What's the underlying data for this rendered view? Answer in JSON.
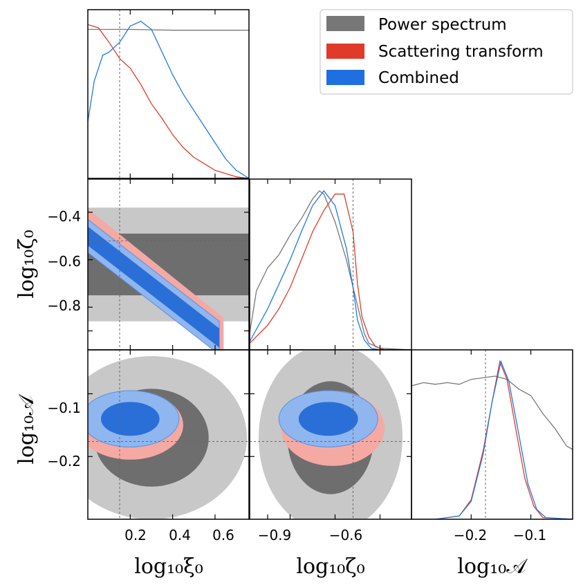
{
  "chart_data": {
    "type": "corner",
    "parameters": [
      {
        "key": "xi0",
        "label": "log₁₀ξ₀",
        "range": [
          0.0,
          0.76
        ],
        "ticks": [
          0.2,
          0.4,
          0.6
        ],
        "tick_labels": [
          "0.2",
          "0.4",
          "0.6"
        ],
        "truth": 0.15
      },
      {
        "key": "zeta0",
        "label": "log₁₀ζ₀",
        "range": [
          -0.98,
          -0.26
        ],
        "ticks": [
          -0.9,
          -0.8,
          -0.6,
          -0.4
        ],
        "tick_labels": [
          "−0.9",
          "−0.8",
          "−0.6",
          "−0.4"
        ],
        "truth": -0.52
      },
      {
        "key": "A",
        "label": "log₁₀𝒜",
        "range": [
          -0.3,
          -0.03
        ],
        "ticks": [
          -0.2,
          -0.1
        ],
        "tick_labels": [
          "−0.2",
          "−0.1"
        ],
        "truth": -0.176
      }
    ],
    "axis_tick_labels": {
      "xi0_x": [
        "0.2",
        "0.4",
        "0.6"
      ],
      "zeta0_x": [
        "−0.9",
        "−0.6"
      ],
      "A_x": [
        "−0.2",
        "−0.1"
      ],
      "zeta0_y": [
        "−0.4",
        "−0.6",
        "−0.8"
      ],
      "A_y": [
        "−0.1",
        "−0.2"
      ]
    },
    "series": [
      {
        "name": "Power spectrum",
        "color": "#777777"
      },
      {
        "name": "Scattering transform",
        "color": "#e03a2a"
      },
      {
        "name": "Combined",
        "color": "#1f6fe0"
      }
    ],
    "marginals": {
      "xi0": {
        "Power spectrum": [
          [
            0.0,
            0.92
          ],
          [
            0.2,
            0.92
          ],
          [
            0.4,
            0.915
          ],
          [
            0.6,
            0.915
          ],
          [
            0.76,
            0.915
          ]
        ],
        "Scattering transform": [
          [
            0.0,
            0.95
          ],
          [
            0.05,
            0.93
          ],
          [
            0.1,
            0.84
          ],
          [
            0.15,
            0.74
          ],
          [
            0.2,
            0.68
          ],
          [
            0.25,
            0.58
          ],
          [
            0.3,
            0.46
          ],
          [
            0.35,
            0.37
          ],
          [
            0.4,
            0.27
          ],
          [
            0.45,
            0.19
          ],
          [
            0.5,
            0.13
          ],
          [
            0.55,
            0.09
          ],
          [
            0.6,
            0.05
          ],
          [
            0.65,
            0.03
          ],
          [
            0.7,
            0.01
          ],
          [
            0.76,
            0.0
          ]
        ],
        "Combined": [
          [
            0.0,
            0.35
          ],
          [
            0.03,
            0.6
          ],
          [
            0.07,
            0.76
          ],
          [
            0.1,
            0.78
          ],
          [
            0.15,
            0.84
          ],
          [
            0.2,
            0.94
          ],
          [
            0.25,
            0.97
          ],
          [
            0.3,
            0.92
          ],
          [
            0.35,
            0.78
          ],
          [
            0.4,
            0.64
          ],
          [
            0.45,
            0.52
          ],
          [
            0.5,
            0.42
          ],
          [
            0.55,
            0.32
          ],
          [
            0.6,
            0.22
          ],
          [
            0.65,
            0.12
          ],
          [
            0.7,
            0.05
          ],
          [
            0.76,
            0.0
          ]
        ]
      },
      "zeta0": {
        "Power spectrum": [
          [
            -0.98,
            0.1
          ],
          [
            -0.95,
            0.36
          ],
          [
            -0.9,
            0.5
          ],
          [
            -0.85,
            0.58
          ],
          [
            -0.8,
            0.7
          ],
          [
            -0.75,
            0.8
          ],
          [
            -0.7,
            0.92
          ],
          [
            -0.67,
            0.97
          ],
          [
            -0.65,
            0.95
          ],
          [
            -0.6,
            0.78
          ],
          [
            -0.55,
            0.55
          ],
          [
            -0.5,
            0.27
          ],
          [
            -0.47,
            0.1
          ],
          [
            -0.45,
            0.04
          ],
          [
            -0.4,
            0.01
          ],
          [
            -0.26,
            0.0
          ]
        ],
        "Scattering transform": [
          [
            -0.98,
            0.04
          ],
          [
            -0.9,
            0.15
          ],
          [
            -0.85,
            0.25
          ],
          [
            -0.8,
            0.38
          ],
          [
            -0.75,
            0.55
          ],
          [
            -0.7,
            0.72
          ],
          [
            -0.65,
            0.85
          ],
          [
            -0.6,
            0.95
          ],
          [
            -0.56,
            0.95
          ],
          [
            -0.52,
            0.72
          ],
          [
            -0.5,
            0.4
          ],
          [
            -0.48,
            0.2
          ],
          [
            -0.45,
            0.08
          ],
          [
            -0.42,
            0.02
          ],
          [
            -0.38,
            0.0
          ],
          [
            -0.26,
            0.0
          ]
        ],
        "Combined": [
          [
            -0.98,
            0.05
          ],
          [
            -0.9,
            0.25
          ],
          [
            -0.85,
            0.4
          ],
          [
            -0.8,
            0.55
          ],
          [
            -0.75,
            0.72
          ],
          [
            -0.7,
            0.88
          ],
          [
            -0.65,
            0.97
          ],
          [
            -0.6,
            0.88
          ],
          [
            -0.55,
            0.62
          ],
          [
            -0.52,
            0.38
          ],
          [
            -0.5,
            0.18
          ],
          [
            -0.47,
            0.06
          ],
          [
            -0.44,
            0.01
          ],
          [
            -0.4,
            0.0
          ],
          [
            -0.26,
            0.0
          ]
        ]
      },
      "A": {
        "Power spectrum": [
          [
            -0.3,
            0.82
          ],
          [
            -0.28,
            0.84
          ],
          [
            -0.26,
            0.83
          ],
          [
            -0.24,
            0.84
          ],
          [
            -0.22,
            0.83
          ],
          [
            -0.2,
            0.86
          ],
          [
            -0.18,
            0.87
          ],
          [
            -0.16,
            0.88
          ],
          [
            -0.14,
            0.86
          ],
          [
            -0.12,
            0.8
          ],
          [
            -0.1,
            0.76
          ],
          [
            -0.08,
            0.65
          ],
          [
            -0.06,
            0.56
          ],
          [
            -0.04,
            0.45
          ],
          [
            -0.03,
            0.43
          ]
        ],
        "Scattering transform": [
          [
            -0.3,
            0.0
          ],
          [
            -0.26,
            0.0
          ],
          [
            -0.22,
            0.02
          ],
          [
            -0.2,
            0.12
          ],
          [
            -0.18,
            0.42
          ],
          [
            -0.165,
            0.72
          ],
          [
            -0.152,
            0.97
          ],
          [
            -0.14,
            0.86
          ],
          [
            -0.125,
            0.55
          ],
          [
            -0.11,
            0.25
          ],
          [
            -0.095,
            0.08
          ],
          [
            -0.08,
            0.01
          ],
          [
            -0.03,
            0.0
          ]
        ],
        "Combined": [
          [
            -0.3,
            0.0
          ],
          [
            -0.26,
            0.0
          ],
          [
            -0.22,
            0.02
          ],
          [
            -0.2,
            0.11
          ],
          [
            -0.18,
            0.4
          ],
          [
            -0.165,
            0.72
          ],
          [
            -0.15,
            0.97
          ],
          [
            -0.137,
            0.85
          ],
          [
            -0.12,
            0.52
          ],
          [
            -0.105,
            0.22
          ],
          [
            -0.09,
            0.06
          ],
          [
            -0.075,
            0.01
          ],
          [
            -0.03,
            0.0
          ]
        ]
      }
    },
    "joint": {
      "zeta0_vs_xi0": {
        "Power spectrum": {
          "type": "band",
          "center": [
            [
              0.0,
              -0.62
            ],
            [
              0.76,
              -0.62
            ]
          ],
          "outer_halfwidth": 0.24,
          "inner_halfwidth": 0.13
        },
        "Scattering transform": {
          "type": "band",
          "center": [
            [
              0.0,
              -0.47
            ],
            [
              0.64,
              -0.93
            ]
          ],
          "outer_halfwidth": 0.085,
          "inner_halfwidth": 0.05
        },
        "Combined": {
          "type": "band",
          "center": [
            [
              0.0,
              -0.5
            ],
            [
              0.62,
              -0.93
            ]
          ],
          "outer_halfwidth": 0.07,
          "inner_halfwidth": 0.04
        }
      },
      "A_vs_xi0": {
        "Power spectrum": {
          "type": "ellipse",
          "cx": 0.3,
          "cy": -0.17,
          "rx": 0.45,
          "ry": 0.13,
          "inner_scale": 0.6
        },
        "Scattering transform": {
          "type": "ellipse",
          "cx": 0.2,
          "cy": -0.15,
          "rx": 0.25,
          "ry": 0.055,
          "inner_scale": 0.6
        },
        "Combined": {
          "type": "ellipse",
          "cx": 0.2,
          "cy": -0.14,
          "rx": 0.23,
          "ry": 0.045,
          "inner_scale": 0.6
        }
      },
      "A_vs_zeta0": {
        "Power spectrum": {
          "type": "ellipse",
          "cx": -0.62,
          "cy": -0.17,
          "rx": 0.32,
          "ry": 0.15,
          "inner_scale": 0.6
        },
        "Scattering transform": {
          "type": "ellipse",
          "cx": -0.61,
          "cy": -0.155,
          "rx": 0.23,
          "ry": 0.06,
          "inner_scale": 0.6
        },
        "Combined": {
          "type": "ellipse",
          "cx": -0.63,
          "cy": -0.14,
          "rx": 0.22,
          "ry": 0.045,
          "inner_scale": 0.6
        }
      }
    },
    "legend_position": "top-right",
    "grid": false
  },
  "legend": {
    "power": "Power spectrum",
    "scattering": "Scattering transform",
    "combined": "Combined"
  },
  "axis_labels": {
    "x1": "log₁₀ξ₀",
    "x2": "log₁₀ζ₀",
    "x3": "log₁₀𝒜",
    "y2": "log₁₀ζ₀",
    "y3": "log₁₀𝒜"
  },
  "colors": {
    "power_dark": "#6e6e6e",
    "power_light": "#c8c8c8",
    "scatter_fill": "#f5a9a3",
    "scatter_line": "#e03a2a",
    "combined_light": "#8fb6ef",
    "combined_dark": "#2a6fd8",
    "truth_line": "#666666"
  }
}
